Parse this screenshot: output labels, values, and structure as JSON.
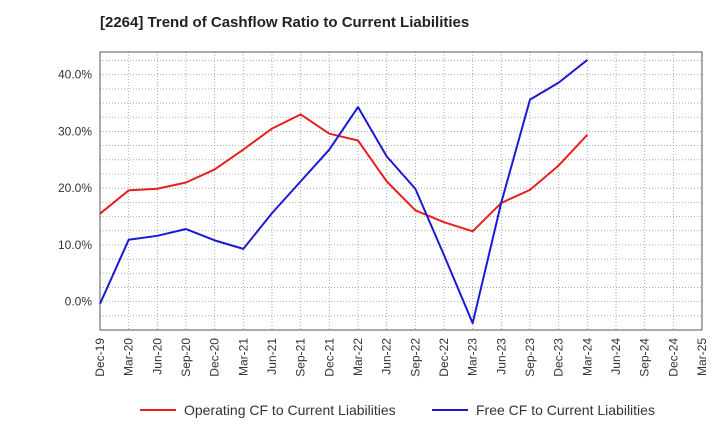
{
  "chart_data": {
    "type": "line",
    "title": "[2264]  Trend of Cashflow Ratio to Current Liabilities",
    "xlabel": "",
    "ylabel": "",
    "x": [
      "Dec-19",
      "Mar-20",
      "Jun-20",
      "Sep-20",
      "Dec-20",
      "Mar-21",
      "Jun-21",
      "Sep-21",
      "Dec-21",
      "Mar-22",
      "Jun-22",
      "Sep-22",
      "Dec-22",
      "Mar-23",
      "Jun-23",
      "Sep-23",
      "Dec-23",
      "Mar-24",
      "Jun-24",
      "Sep-24",
      "Dec-24",
      "Mar-25"
    ],
    "ylim": [
      -5,
      44
    ],
    "yticks": [
      0,
      10,
      20,
      30,
      40
    ],
    "ytick_labels": [
      "0.0%",
      "10.0%",
      "20.0%",
      "30.0%",
      "40.0%"
    ],
    "grid": true,
    "legend_position": "bottom",
    "series": [
      {
        "name": "Operating CF to Current Liabilities",
        "color": "#e8201c",
        "values": [
          15.5,
          19.6,
          19.9,
          21.0,
          23.3,
          26.8,
          30.5,
          33.0,
          29.6,
          28.4,
          21.2,
          16.1,
          14.0,
          12.4,
          17.4,
          19.7,
          24.0,
          29.4,
          null,
          null,
          null,
          null
        ]
      },
      {
        "name": "Free CF to Current Liabilities",
        "color": "#1a1ad6",
        "values": [
          -0.4,
          10.9,
          11.6,
          12.8,
          10.8,
          9.3,
          15.6,
          21.2,
          26.8,
          34.3,
          25.6,
          19.9,
          8.2,
          -3.8,
          17.5,
          35.6,
          38.6,
          42.6,
          null,
          null,
          null,
          null
        ]
      }
    ]
  }
}
